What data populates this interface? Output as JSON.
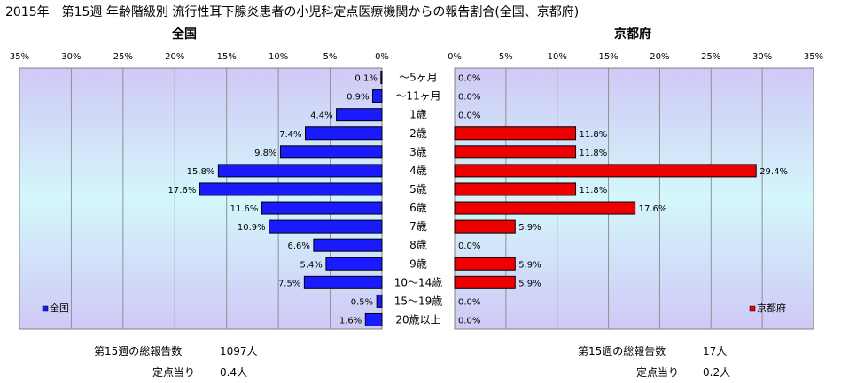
{
  "title": "2015年　第15週 年齢階級別 流行性耳下腺炎患者の小児科定点医療機関からの報告割合(全国、京都府)",
  "chart_data": {
    "type": "bar",
    "orientation": "horizontal-butterfly",
    "grid": true,
    "categories": [
      "～5ヶ月",
      "～11ヶ月",
      "1歳",
      "2歳",
      "3歳",
      "4歳",
      "5歳",
      "6歳",
      "7歳",
      "8歳",
      "9歳",
      "10～14歳",
      "15～19歳",
      "20歳以上"
    ],
    "panels": [
      {
        "title": "全国",
        "legend": "全国",
        "legend_position": "bottom-left",
        "color": "#1a1aff",
        "xlim": [
          35,
          0
        ],
        "ticks": [
          "35%",
          "30%",
          "25%",
          "20%",
          "15%",
          "10%",
          "5%",
          "0%"
        ],
        "values": [
          0.1,
          0.9,
          4.4,
          7.4,
          9.8,
          15.8,
          17.6,
          11.6,
          10.9,
          6.6,
          5.4,
          7.5,
          0.5,
          1.6
        ],
        "labels": [
          "0.1%",
          "0.9%",
          "4.4%",
          "7.4%",
          "9.8%",
          "15.8%",
          "17.6%",
          "11.6%",
          "10.9%",
          "6.6%",
          "5.4%",
          "7.5%",
          "0.5%",
          "1.6%"
        ]
      },
      {
        "title": "京都府",
        "legend": "京都府",
        "legend_position": "bottom-right",
        "color": "#ee0000",
        "xlim": [
          0,
          35
        ],
        "ticks": [
          "0%",
          "5%",
          "10%",
          "15%",
          "20%",
          "25%",
          "30%",
          "35%"
        ],
        "values": [
          0.0,
          0.0,
          0.0,
          11.8,
          11.8,
          29.4,
          11.8,
          17.6,
          5.9,
          0.0,
          5.9,
          5.9,
          0.0,
          0.0
        ],
        "labels": [
          "0.0%",
          "0.0%",
          "0.0%",
          "11.8%",
          "11.8%",
          "29.4%",
          "11.8%",
          "17.6%",
          "5.9%",
          "0.0%",
          "5.9%",
          "5.9%",
          "0.0%",
          "0.0%"
        ]
      }
    ]
  },
  "footer": {
    "left": {
      "total_label": "第15週の総報告数",
      "total_value": "1097人",
      "per_label": "定点当り",
      "per_value": "0.4人"
    },
    "right": {
      "total_label": "第15週の総報告数",
      "total_value": "17人",
      "per_label": "定点当り",
      "per_value": "0.2人"
    }
  }
}
